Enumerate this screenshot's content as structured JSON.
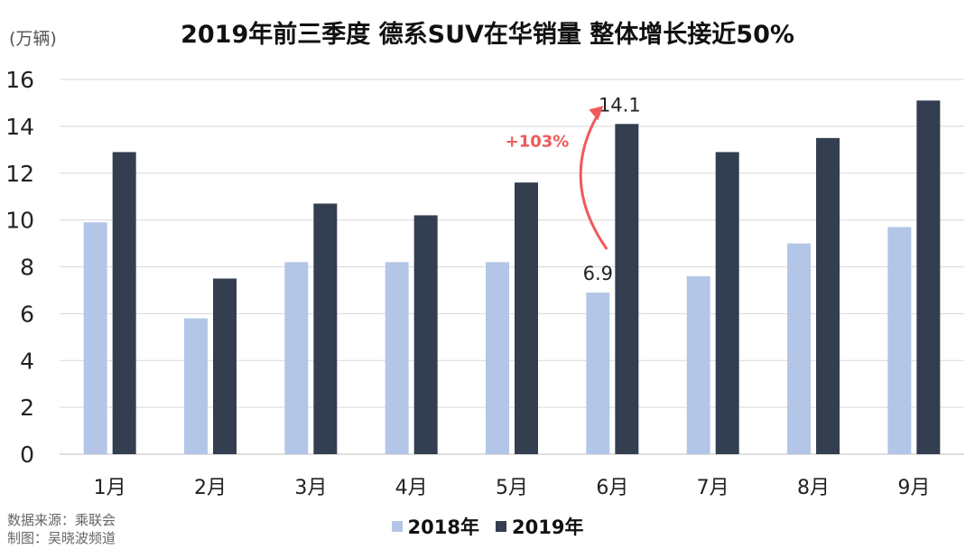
{
  "unit_label": "(万辆)",
  "title": "2019年前三季度 德系SUV在华销量 整体增长接近50%",
  "source_line1": "数据来源：乘联会",
  "source_line2": "制图：吴晓波频道",
  "colors": {
    "series_2018": "#b4c6e7",
    "series_2019": "#333f50",
    "annotation": "#f05a5a",
    "grid": "#d9d9d9"
  },
  "annotation": {
    "text": "+103%",
    "from_label": "6.9",
    "to_label": "14.1",
    "category": "6月"
  },
  "chart_data": {
    "type": "bar",
    "categories": [
      "1月",
      "2月",
      "3月",
      "4月",
      "5月",
      "6月",
      "7月",
      "8月",
      "9月"
    ],
    "series": [
      {
        "name": "2018年",
        "values": [
          9.9,
          5.8,
          8.2,
          8.2,
          8.2,
          6.9,
          7.6,
          9.0,
          9.7
        ]
      },
      {
        "name": "2019年",
        "values": [
          12.9,
          7.5,
          10.7,
          10.2,
          11.6,
          14.1,
          12.9,
          13.5,
          15.1
        ]
      }
    ],
    "title": "2019年前三季度 德系SUV在华销量 整体增长接近50%",
    "ylabel": "(万辆)",
    "ylim": [
      0,
      16
    ],
    "yticks": [
      0,
      2,
      4,
      6,
      8,
      10,
      12,
      14,
      16
    ],
    "grid": true,
    "legend_position": "bottom"
  }
}
